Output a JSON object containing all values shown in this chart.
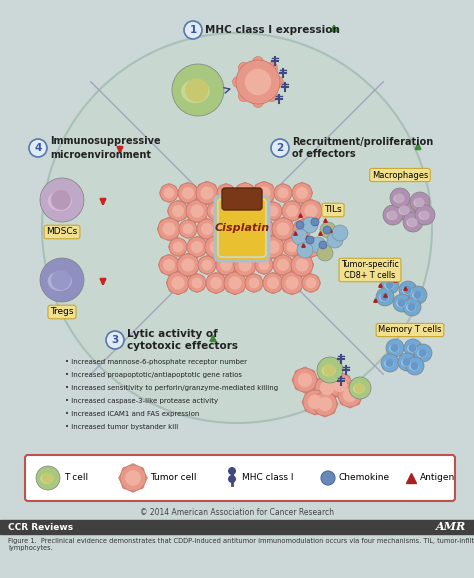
{
  "fig_bg": "#ccd8d8",
  "circle_color": "#c8d8d0",
  "circle_edge": "#a8c0b8",
  "quadrant_line_color": "#9898b8",
  "section1_label": "MHC class I expression",
  "section2_label": "Recruitment/proliferation\nof effectors",
  "section3_label": "Lytic activity of\ncytotoxic effectors",
  "section4_label": "Immunosuppressive\nmicroenvironment",
  "section3_bullets": [
    "Increased mannose-6-phosphate receptor number",
    "Increased proapoptotic/antiapoptotic gene ratios",
    "Increased sensitivity to perforin/granzyme-mediated killing",
    "Increased caspase-3-like protease activity",
    "Increased ICAM1 and FAS expression",
    "Increased tumor bystander kill"
  ],
  "label_mdsc": "MDSCs",
  "label_tregs": "Tregs",
  "label_macrophages": "Macrophages",
  "label_tils": "TILs",
  "label_cd8": "Tumor-specific\nCD8+ T cells",
  "label_memory": "Memory T cells",
  "cisplatin_label": "Cisplatin",
  "copyright_text": "© 2014 American Association for Cancer Research",
  "footer_left": "CCR Reviews",
  "footer_right": "AMR",
  "caption": "Figure 1.  Preclinical evidence demonstrates that CDDP-induced antitumor immunomodulation occurs via four mechanisms. TIL, tumor-infiltrating\nlymphocytes.",
  "up_arrow_color": "#3a8a3a",
  "down_arrow_color": "#cc2222",
  "num_circle_color": "#e0eaf8",
  "num_circle_edge": "#5878a8",
  "label_box_color": "#f0e090",
  "label_box_edge": "#c8a830",
  "legend_box_edge": "#c05050",
  "section_num_color": "#3858a0",
  "tumor_outer": "#e89888",
  "tumor_inner": "#f0b0a0",
  "tumor_edge": "#c87868",
  "tcell_outer": "#a8c880",
  "tcell_inner": "#d0d898",
  "tcell_nucleus": "#c8c870",
  "mdsc_outer": "#c0a8c8",
  "mdsc_inner": "#d8c0d8",
  "treg_outer": "#9090c0",
  "treg_inner": "#b0b0d8",
  "macro_outer": "#b090b0",
  "macro_inner": "#d0b8d0",
  "til_blue_outer": "#80a8c8",
  "til_blue_inner": "#b0c8e0",
  "mem_blue_outer": "#70a8d0",
  "mem_blue_inner": "#a8c8e8",
  "mhc_color": "#404880",
  "chemokine_color": "#6888b8",
  "antigen_color": "#aa2020",
  "vial_body": "#e8c030",
  "vial_cap": "#7a3818",
  "vial_label_color": "#882010",
  "vial_glass": "#a8c8d8"
}
